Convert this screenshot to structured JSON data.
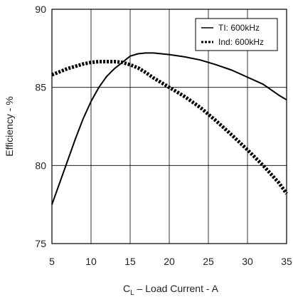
{
  "chart_data": {
    "type": "line",
    "xlabel_main": "C",
    "xlabel_sub": "L",
    "xlabel_rest": " – Load Current - A",
    "ylabel": "Efficiency - %",
    "xlim": [
      5,
      35
    ],
    "ylim": [
      75,
      90
    ],
    "x_ticks": [
      "5",
      "10",
      "15",
      "20",
      "25",
      "30",
      "35"
    ],
    "y_ticks": [
      "75",
      "80",
      "85",
      "90"
    ],
    "grid": true,
    "legend_position": "top-right",
    "series": [
      {
        "name": "TI:  600kHz",
        "style": "solid",
        "color": "#000000",
        "x": [
          5,
          6,
          7,
          8,
          9,
          10,
          11,
          12,
          13,
          14,
          15,
          16,
          17,
          18,
          19,
          20,
          22,
          24,
          26,
          28,
          30,
          32,
          34,
          35
        ],
        "y": [
          77.5,
          78.9,
          80.3,
          81.7,
          83.0,
          84.1,
          85.0,
          85.7,
          86.2,
          86.6,
          87.0,
          87.15,
          87.2,
          87.2,
          87.15,
          87.1,
          86.95,
          86.75,
          86.45,
          86.1,
          85.65,
          85.2,
          84.5,
          84.2
        ]
      },
      {
        "name": "Ind: 600kHz",
        "style": "dotted",
        "color": "#000000",
        "x": [
          5,
          6,
          7,
          8,
          9,
          10,
          11,
          12,
          13,
          14,
          15,
          16,
          17,
          18,
          19,
          20,
          22,
          24,
          26,
          28,
          30,
          32,
          34,
          35
        ],
        "y": [
          85.8,
          86.0,
          86.2,
          86.35,
          86.5,
          86.6,
          86.65,
          86.65,
          86.65,
          86.6,
          86.45,
          86.25,
          85.95,
          85.6,
          85.3,
          85.0,
          84.4,
          83.7,
          82.85,
          81.95,
          81.0,
          80.0,
          78.9,
          78.2
        ]
      }
    ]
  }
}
